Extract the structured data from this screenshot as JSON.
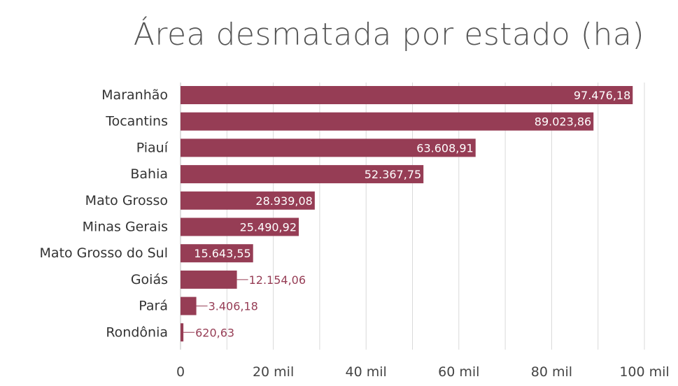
{
  "chart_data": {
    "type": "bar",
    "orientation": "horizontal",
    "title": "Área desmatada por estado (ha)",
    "categories": [
      "Maranhão",
      "Tocantins",
      "Piauí",
      "Bahia",
      "Mato Grosso",
      "Minas Gerais",
      "Mato Grosso do Sul",
      "Goiás",
      "Pará",
      "Rondônia"
    ],
    "values": [
      97476.18,
      89023.86,
      63608.91,
      52367.75,
      28939.08,
      25490.92,
      15643.55,
      12154.06,
      3406.18,
      620.63
    ],
    "value_labels": [
      "97.476,18",
      "89.023,86",
      "63.608,91",
      "52.367,75",
      "28.939,08",
      "25.490,92",
      "15.643,55",
      "12.154,06",
      "3.406,18",
      "620,63"
    ],
    "x_ticks": [
      0,
      20000,
      40000,
      60000,
      80000,
      100000
    ],
    "x_tick_labels": [
      "0",
      "20 mil",
      "40 mil",
      "60 mil",
      "80 mil",
      "100 mil"
    ],
    "xlim": [
      0,
      100000
    ],
    "grid": true,
    "bar_color": "#963d55"
  }
}
